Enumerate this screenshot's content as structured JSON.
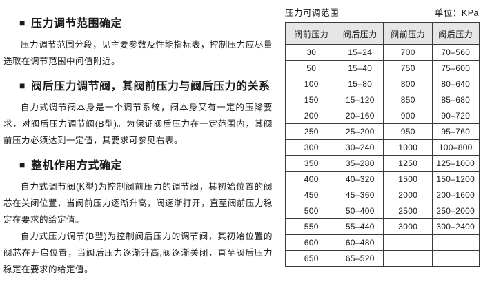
{
  "bullet_glyph": "■",
  "colors": {
    "table_header_bg": "#e6e6e6",
    "table_border": "#3a3a3a",
    "text": "#1a1a1a",
    "page_bg": "#ffffff"
  },
  "sections": [
    {
      "heading": "压力调节范围确定",
      "paragraphs": [
        "压力调节范围分段，见主要参数及性能指标表，控制压力应尽量选取在调节范围中间值附近。"
      ]
    },
    {
      "heading": "阀后压力调节阀，其阀前压力与阀后压力的关系",
      "paragraphs": [
        "自力式调节阀本身是一个调节系统，阀本身又有一定的压降要求，对阀后压力调节阀(B型)。为保证阀后压力在一定范围内，其阀前压力必须达到一定值，其要求可参见右表。"
      ]
    },
    {
      "heading": "整机作用方式确定",
      "paragraphs": [
        "自力式调节阀(K型)为控制阀前压力的调节阀，其初始位置的阀芯在关闭位置，当阀前压力逐渐升高，阀逐渐打开，直至阀前压力稳定在要求的给定值。",
        "自力式压力调节(B型)为控制阀后压力的调节阀，其初始位置的阀芯在开启位置，当阀后压力逐渐升高,阀逐渐关闭，直至阀后压力稳定在要求的给定值。"
      ]
    }
  ],
  "table": {
    "title": "压力可调范围",
    "unit": "单位：KPa",
    "headers": [
      "阀前压力",
      "阀后压力",
      "阀前压力",
      "阀后压力"
    ],
    "rows": [
      [
        "30",
        "15–24",
        "700",
        "70–560"
      ],
      [
        "50",
        "15–40",
        "750",
        "75–600"
      ],
      [
        "100",
        "15–80",
        "800",
        "80–640"
      ],
      [
        "150",
        "15–120",
        "850",
        "85–680"
      ],
      [
        "200",
        "20–160",
        "900",
        "90–720"
      ],
      [
        "250",
        "25–200",
        "950",
        "95–760"
      ],
      [
        "300",
        "30–240",
        "1000",
        "100–800"
      ],
      [
        "350",
        "35–280",
        "1250",
        "125–1000"
      ],
      [
        "400",
        "40–320",
        "1500",
        "150–1200"
      ],
      [
        "450",
        "45–360",
        "2000",
        "200–1600"
      ],
      [
        "500",
        "50–400",
        "2500",
        "250–2000"
      ],
      [
        "550",
        "55–440",
        "3000",
        "300–2400"
      ],
      [
        "600",
        "60–480",
        "",
        ""
      ],
      [
        "650",
        "65–520",
        "",
        ""
      ]
    ]
  }
}
